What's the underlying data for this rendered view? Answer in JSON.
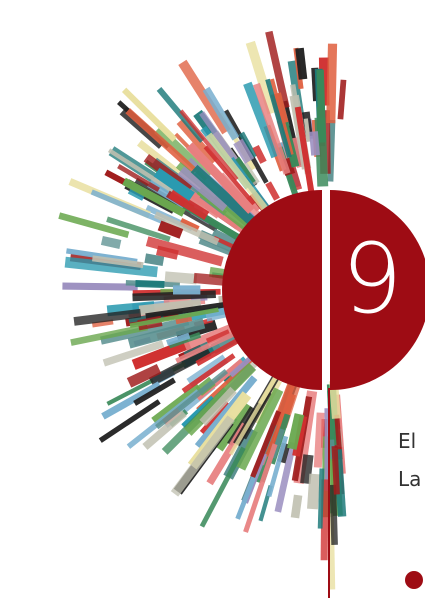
{
  "cover": {
    "number": "9",
    "lines": [
      "El",
      "La"
    ]
  }
}
